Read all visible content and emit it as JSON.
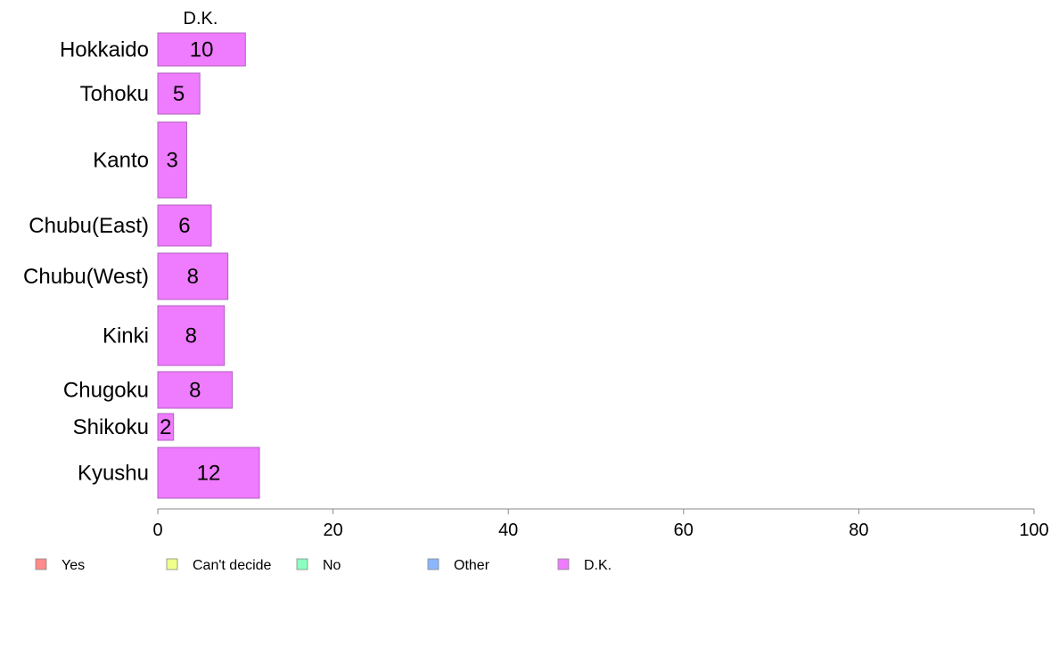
{
  "chart_data": {
    "type": "bar",
    "orientation": "horizontal",
    "stacked": true,
    "column_title": "D.K.",
    "categories": [
      "Hokkaido",
      "Tohoku",
      "Kanto",
      "Chubu(East)",
      "Chubu(West)",
      "Kinki",
      "Chugoku",
      "Shikoku",
      "Kyushu"
    ],
    "bar_values": [
      10,
      4.8,
      3.3,
      6.1,
      8,
      7.6,
      8.5,
      1.8,
      11.6
    ],
    "value_labels": [
      "10",
      "5",
      "3",
      "6",
      "8",
      "8",
      "8",
      "2",
      "12"
    ],
    "series": [
      {
        "name": "Yes",
        "color": "#ff8a8a",
        "values": [
          0,
          0,
          0,
          0,
          0,
          0,
          0,
          0,
          0
        ]
      },
      {
        "name": "Can't decide",
        "color": "#f0ff8a",
        "values": [
          0,
          0,
          0,
          0,
          0,
          0,
          0,
          0,
          0
        ]
      },
      {
        "name": "No",
        "color": "#8affc0",
        "values": [
          0,
          0,
          0,
          0,
          0,
          0,
          0,
          0,
          0
        ]
      },
      {
        "name": "Other",
        "color": "#8ab8ff",
        "values": [
          0,
          0,
          0,
          0,
          0,
          0,
          0,
          0,
          0
        ]
      },
      {
        "name": "D.K.",
        "color": "#ef7bff",
        "values": [
          10,
          4.8,
          3.3,
          6.1,
          8,
          7.6,
          8.5,
          1.8,
          11.6
        ]
      }
    ],
    "xlim": [
      0,
      100
    ],
    "xticks": [
      0,
      20,
      40,
      60,
      80,
      100
    ],
    "grid": false,
    "legend_position": "bottom-left"
  }
}
